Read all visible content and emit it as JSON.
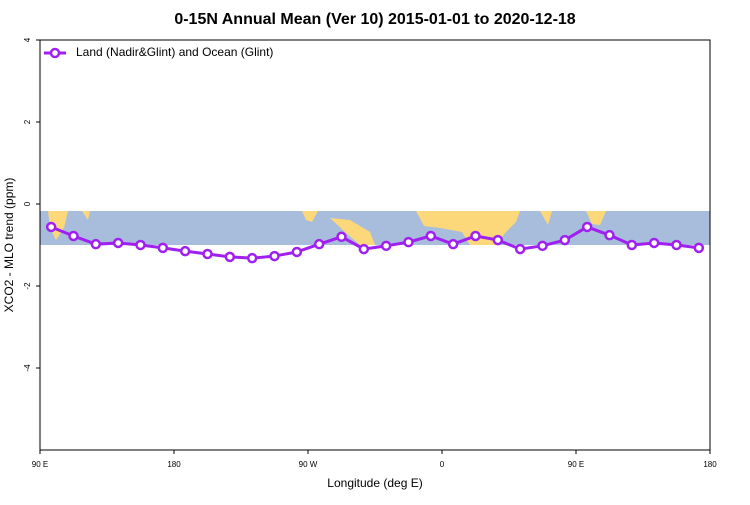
{
  "chart_data": {
    "type": "line",
    "title": "0-15N Annual Mean (Ver 10)   2015-01-01 to 2020-12-18",
    "x_label": "Longitude (deg E)",
    "y_label": "XCO2 - MLO trend (ppm)",
    "x": [
      97.5,
      112.5,
      127.5,
      142.5,
      157.5,
      172.5,
      187.5,
      202.5,
      217.5,
      232.5,
      247.5,
      262.5,
      277.5,
      292.5,
      307.5,
      322.5,
      337.5,
      352.5,
      367.5,
      382.5,
      397.5,
      412.5,
      427.5,
      442.5,
      457.5,
      472.5,
      487.5,
      502.5,
      517.5,
      532.5
    ],
    "series": [
      {
        "name": "Land (Nadir&Glint) and Ocean (Glint)",
        "color": "#a020f0",
        "values": [
          -0.56,
          -0.78,
          -0.98,
          -0.95,
          -1.0,
          -1.07,
          -1.15,
          -1.22,
          -1.29,
          -1.32,
          -1.27,
          -1.17,
          -0.98,
          -0.8,
          -1.1,
          -1.02,
          -0.93,
          -0.78,
          -0.98,
          -0.78,
          -0.88,
          -1.1,
          -1.02,
          -0.88,
          -0.56,
          -0.76,
          -1.0,
          -0.95,
          -1.0,
          -1.07
        ]
      }
    ],
    "xlim": [
      90,
      540
    ],
    "xticks": [
      {
        "value": 90,
        "label": "90 E"
      },
      180,
      {
        "value": 270,
        "label": "90 W"
      },
      {
        "value": 360,
        "label": "0"
      },
      {
        "value": 450,
        "label": "90 E"
      },
      {
        "value": 540,
        "label": "180"
      }
    ],
    "ylim": [
      -6,
      4
    ],
    "yticks": [
      -4,
      -2,
      0,
      2,
      4
    ],
    "legend": "top-left"
  }
}
